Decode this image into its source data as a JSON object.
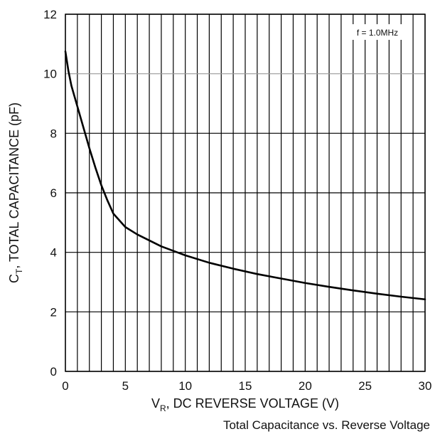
{
  "chart_data": {
    "type": "line",
    "title": "Total Capacitance vs. Reverse Voltage",
    "xlabel": {
      "main": "V",
      "sub": "R",
      "rest": ", DC REVERSE VOLTAGE (V)"
    },
    "ylabel": {
      "main": "C",
      "sub": "T",
      "rest": ", TOTAL CAPACITANCE (pF)"
    },
    "annotation": "f = 1.0MHz",
    "xlim": [
      0,
      30
    ],
    "ylim": [
      0,
      12
    ],
    "xticks": [
      0,
      5,
      10,
      15,
      20,
      25,
      30
    ],
    "yticks": [
      0,
      2,
      4,
      6,
      8,
      10,
      12
    ],
    "x_grid_step": 1,
    "y_grid_step": 2,
    "grid": true,
    "highlight_gridline_y": 10,
    "series": [
      {
        "x": [
          0,
          0.25,
          0.5,
          1,
          1.5,
          2,
          2.5,
          3,
          3.5,
          4,
          5,
          6,
          7,
          8,
          9,
          10,
          12,
          14,
          16,
          18,
          20,
          22,
          24,
          26,
          28,
          30
        ],
        "y": [
          10.75,
          10.1,
          9.6,
          8.9,
          8.2,
          7.5,
          6.85,
          6.25,
          5.75,
          5.3,
          4.85,
          4.6,
          4.4,
          4.2,
          4.05,
          3.9,
          3.65,
          3.45,
          3.27,
          3.12,
          2.97,
          2.84,
          2.72,
          2.61,
          2.51,
          2.42
        ]
      }
    ]
  }
}
